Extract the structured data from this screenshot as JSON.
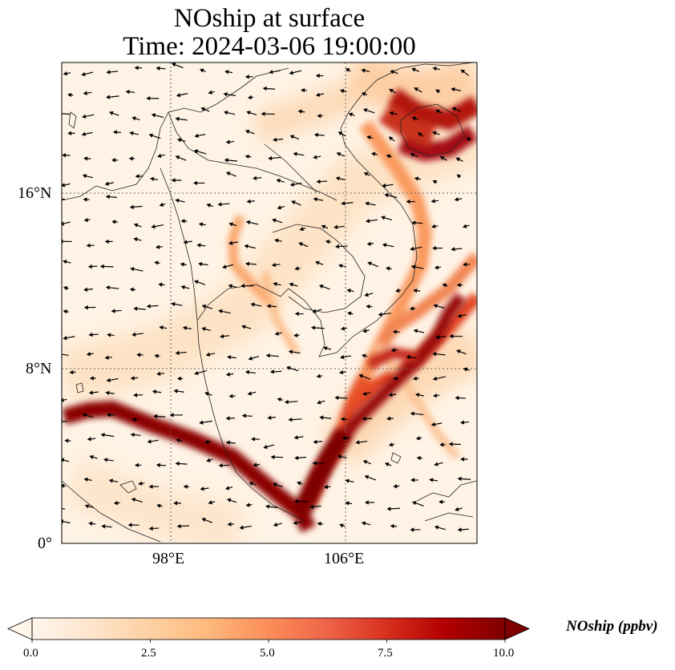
{
  "title": {
    "line1": "NOship at surface",
    "line2": "Time: 2024-03-06 19:00:00"
  },
  "map": {
    "lat_ticks": [
      "16°N",
      "8°N",
      "0°"
    ],
    "lon_ticks": [
      "98°E",
      "106°E"
    ],
    "lat_tick_values": [
      16,
      8,
      0
    ],
    "lon_tick_values": [
      98,
      106
    ],
    "lon_range": [
      93,
      112
    ],
    "lat_range": [
      0,
      22
    ],
    "gridlines": true,
    "field": "NOship concentration with wind vectors"
  },
  "colorbar": {
    "label": "NOship (ppbv)",
    "ticks": [
      "0.0",
      "2.5",
      "5.0",
      "7.5",
      "10.0"
    ],
    "tick_values": [
      0,
      2.5,
      5,
      7.5,
      10
    ],
    "range": [
      0,
      10
    ],
    "extend": "both",
    "colors": [
      "#fff5eb",
      "#fee6ce",
      "#fdd0a2",
      "#fdae6b",
      "#fd8d3c",
      "#f16913",
      "#d94801",
      "#a50f15",
      "#7f0000"
    ]
  }
}
